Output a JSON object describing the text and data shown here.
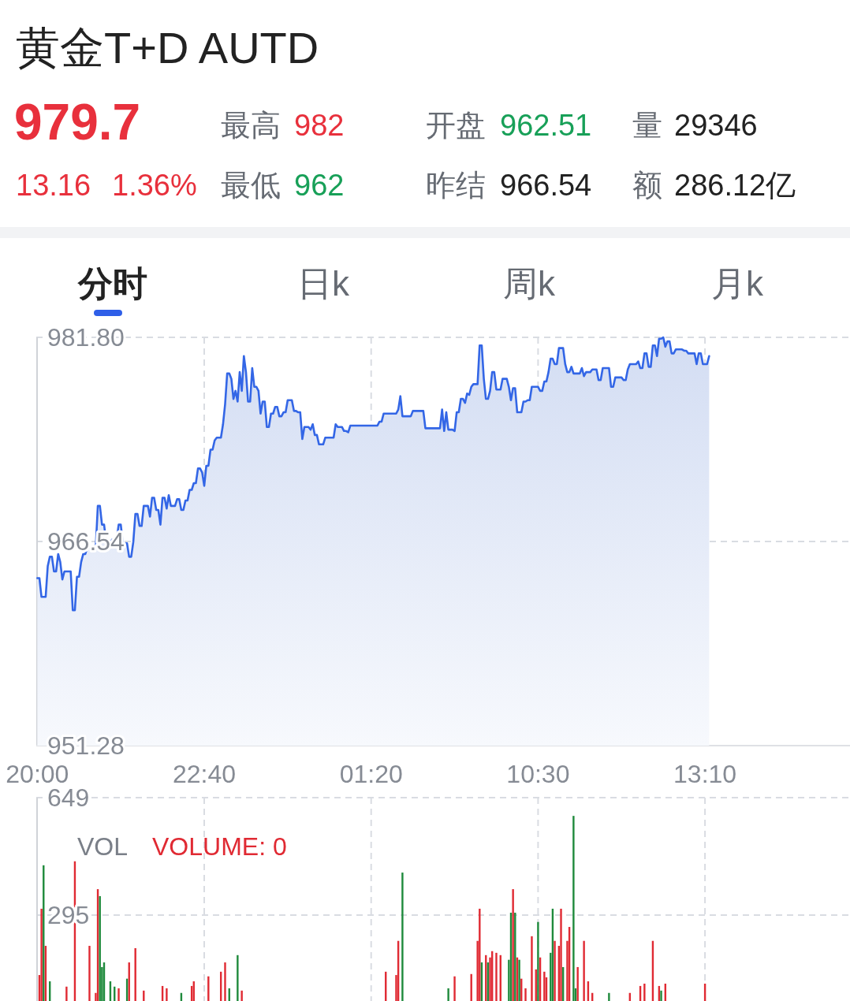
{
  "chart_data": [
    {
      "type": "other",
      "title": "黄金T+D AUTD",
      "annotations": [
        "979.7",
        "最高",
        "982",
        "开盘",
        "962.51",
        "量",
        "29346",
        "13.16",
        "1.36%",
        "最低",
        "962",
        "昨结",
        "966.54",
        "额",
        "286.12亿",
        "分时",
        "日k",
        "周k",
        "月k"
      ]
    },
    {
      "type": "area",
      "categories": [
        "20:00",
        null,
        null,
        null,
        null,
        null,
        null,
        null,
        null,
        null,
        null,
        null,
        null,
        null,
        null,
        null,
        null,
        null,
        null,
        null,
        null,
        null,
        null,
        null,
        null,
        null,
        null,
        null,
        null,
        null,
        null,
        null,
        null,
        null,
        null,
        null,
        null,
        null,
        null,
        null,
        null,
        null,
        null,
        null,
        null,
        null,
        null,
        null,
        null,
        null,
        null,
        null,
        null,
        null,
        null,
        null,
        null,
        null,
        null,
        null,
        null,
        null,
        null,
        null,
        null,
        null,
        null,
        null,
        null,
        null,
        null,
        null,
        null,
        null,
        null,
        null,
        null,
        null,
        null,
        null,
        "22:40",
        null,
        null,
        null,
        null,
        null,
        null,
        null,
        null,
        null,
        null,
        null,
        null,
        null,
        null,
        null,
        null,
        null,
        null,
        null,
        null,
        null,
        null,
        null,
        null,
        null,
        null,
        null,
        null,
        null,
        null,
        null,
        null,
        null,
        null,
        null,
        null,
        null,
        null,
        null,
        null,
        null,
        null,
        null,
        null,
        null,
        null,
        null,
        null,
        null,
        null,
        null,
        null,
        null,
        null,
        null,
        null,
        null,
        null,
        null,
        null,
        null,
        null,
        null,
        null,
        null,
        null,
        null,
        null,
        null,
        null,
        null,
        null,
        null,
        null,
        null,
        null,
        null,
        null,
        null,
        "01:20",
        null,
        null,
        null,
        null,
        null,
        null,
        null,
        null,
        null,
        null,
        null,
        null,
        null,
        null,
        null,
        null,
        null,
        null,
        null,
        null,
        null,
        null,
        null,
        null,
        null,
        null,
        null,
        null,
        null,
        null,
        null,
        null,
        null,
        null,
        null,
        null,
        null,
        null,
        null,
        null,
        null,
        null,
        null,
        null,
        null,
        null,
        null,
        null,
        null,
        null,
        null,
        null,
        null,
        null,
        null,
        null,
        null,
        null,
        null,
        null,
        null,
        null,
        null,
        null,
        null,
        null,
        null,
        null,
        null,
        null,
        null,
        null,
        null,
        null,
        null,
        null,
        null,
        null,
        null,
        "10:30",
        null,
        null,
        null,
        null,
        null,
        null,
        null,
        null,
        null,
        null,
        null,
        null,
        null,
        null,
        null,
        null,
        null,
        null,
        null,
        null,
        null,
        null,
        null,
        null,
        null,
        null,
        null,
        null,
        null,
        null,
        null,
        null,
        null,
        null,
        null,
        null,
        null,
        null,
        null,
        null,
        null,
        null,
        null,
        null,
        null,
        null,
        null,
        null,
        null,
        null,
        null,
        null,
        null,
        null,
        null,
        null,
        null,
        null,
        null,
        null,
        null,
        null,
        null,
        null,
        null,
        null,
        null,
        null,
        null,
        null,
        null,
        null,
        null,
        null,
        null,
        null,
        null,
        null,
        null,
        "13:10",
        null,
        null,
        null,
        null,
        null,
        null,
        null,
        null,
        null,
        null,
        null,
        null,
        null,
        null,
        null,
        null,
        null,
        null,
        null,
        null,
        null,
        null,
        null,
        null,
        null,
        null,
        null,
        null,
        null,
        null,
        null,
        null,
        null,
        null,
        null,
        null,
        null,
        null,
        null,
        null,
        null,
        null,
        null,
        null,
        null,
        null,
        null,
        null,
        null,
        null,
        null,
        null,
        null,
        null,
        null,
        null,
        null,
        null,
        null,
        null,
        null,
        null,
        null,
        null,
        null,
        null,
        null,
        null,
        null
      ],
      "series": [
        {
          "color": "#3366e6",
          "values": [
            963.8,
            963.8,
            962.4,
            962.4,
            962.4,
            964.7,
            965.4,
            965.4,
            964.3,
            964.3,
            965.6,
            965.0,
            963.7,
            964.3,
            964.3,
            964.3,
            964.3,
            961.4,
            961.4,
            963.9,
            963.9,
            965.0,
            965.6,
            965.6,
            966.1,
            966.1,
            966.1,
            966.1,
            966.1,
            969.2,
            969.2,
            967.8,
            967.8,
            966.5,
            966.5,
            966.5,
            966.7,
            966.7,
            966.7,
            967.8,
            967.8,
            966.4,
            966.4,
            966.4,
            965.4,
            965.4,
            966.5,
            968.6,
            968.6,
            967.7,
            967.7,
            969.2,
            969.2,
            969.2,
            968.4,
            969.8,
            969.8,
            968.9,
            968.9,
            967.8,
            969.8,
            969.8,
            969.0,
            970.0,
            969.2,
            969.2,
            969.2,
            969.7,
            969.7,
            968.9,
            968.9,
            969.6,
            969.6,
            970.4,
            970.4,
            970.9,
            970.9,
            972.0,
            972.0,
            971.7,
            970.7,
            972.2,
            972.2,
            973.4,
            973.4,
            974.1,
            974.3,
            974.3,
            974.3,
            975.3,
            976.8,
            979.1,
            979.1,
            978.7,
            977.2,
            977.8,
            977.0,
            979.2,
            977.8,
            980.4,
            979.2,
            977.0,
            977.0,
            979.5,
            978.1,
            978.1,
            977.8,
            976.1,
            977.0,
            977.0,
            975.1,
            975.1,
            976.1,
            976.1,
            976.6,
            976.6,
            975.9,
            975.9,
            976.2,
            976.2,
            977.1,
            977.1,
            977.1,
            976.3,
            976.3,
            976.2,
            976.2,
            974.2,
            975.1,
            975.1,
            975.1,
            974.9,
            975.3,
            974.5,
            974.5,
            973.8,
            973.8,
            973.8,
            974.3,
            974.3,
            974.3,
            974.3,
            974.3,
            975.3,
            975.1,
            975.1,
            975.1,
            974.8,
            974.8,
            974.7,
            975.2,
            975.2,
            975.2,
            975.2,
            975.2,
            975.2,
            975.2,
            975.2,
            975.2,
            975.2,
            975.2,
            975.2,
            975.2,
            975.2,
            975.5,
            975.5,
            976.1,
            976.1,
            976.1,
            976.1,
            976.1,
            976.1,
            976.1,
            976.4,
            977.4,
            975.9,
            975.9,
            975.9,
            975.9,
            975.9,
            976.3,
            976.3,
            976.3,
            976.3,
            976.3,
            976.3,
            975.0,
            975.0,
            975.0,
            975.0,
            975.0,
            975.0,
            975.0,
            975.0,
            976.4,
            974.8,
            976.2,
            974.9,
            974.9,
            974.9,
            974.8,
            976.2,
            976.2,
            977.2,
            977.2,
            976.9,
            977.6,
            977.5,
            978.1,
            978.3,
            978.3,
            978.3,
            981.2,
            981.2,
            978.7,
            977.2,
            977.2,
            977.8,
            979.2,
            979.2,
            977.9,
            977.9,
            977.9,
            978.7,
            978.7,
            978.7,
            978.1,
            977.1,
            978.0,
            978.0,
            976.2,
            976.2,
            976.2,
            977.0,
            977.0,
            977.1,
            977.1,
            978.1,
            978.1,
            978.1,
            978.1,
            977.8,
            977.8,
            978.5,
            978.5,
            979.2,
            980.2,
            980.2,
            979.8,
            979.8,
            981.0,
            981.0,
            981.0,
            979.8,
            979.2,
            979.2,
            979.6,
            979.1,
            979.1,
            979.1,
            979.1,
            979.5,
            978.9,
            979.2,
            979.2,
            979.2,
            979.4,
            979.4,
            979.4,
            978.6,
            978.6,
            979.5,
            979.5,
            979.5,
            979.5,
            978.1,
            978.1,
            978.8,
            978.8,
            978.8,
            978.8,
            978.6,
            978.6,
            979.4,
            979.8,
            979.8,
            979.8,
            979.8,
            980.0,
            979.5,
            979.5,
            980.6,
            980.6,
            979.6,
            979.6,
            981.2,
            981.2,
            980.4,
            981.7,
            981.7,
            981.8,
            981.1,
            981.5,
            981.5,
            980.6,
            980.6,
            980.9,
            980.9,
            980.9,
            980.9,
            980.8,
            980.8,
            980.6,
            980.6,
            980.6,
            980.6,
            979.8,
            980.6,
            980.6,
            979.8,
            979.8,
            979.8,
            980.4,
            null,
            null,
            null,
            null,
            null,
            null,
            null,
            null,
            null,
            null,
            null,
            null,
            null,
            null,
            null,
            null,
            null,
            null,
            null,
            null,
            null,
            null,
            null,
            null,
            null,
            null,
            null,
            null,
            null,
            null,
            null,
            null,
            null,
            null,
            null,
            null,
            null,
            null,
            null,
            null,
            null,
            null,
            null,
            null,
            null,
            null,
            null,
            null,
            null,
            null,
            null,
            null,
            null,
            null,
            null,
            null,
            null,
            null,
            null,
            null,
            null,
            null,
            null,
            null,
            null,
            null,
            null
          ]
        }
      ],
      "ylim": [
        951.28,
        981.8
      ],
      "yticks": [
        {
          "value": 951.28,
          "label": "951.28"
        },
        {
          "value": 966.54,
          "label": "966.54"
        },
        {
          "value": 981.8,
          "label": "981.80"
        }
      ],
      "grid": true
    },
    {
      "type": "bar",
      "annotations": [
        "VOL",
        "VOLUME: 0"
      ],
      "tick_labels": "y",
      "ylim": [
        0,
        649
      ],
      "yticks": [
        295,
        649
      ],
      "grid": true,
      "series": [
        {
          "values": [
            null,
            114,
            314,
            445,
            202,
            null,
            95,
            null,
            null,
            null,
            null,
            null,
            null,
            null,
            79,
            null,
            null,
            null,
            457,
            null,
            null,
            null,
            null,
            null,
            null,
            202,
            null,
            null,
            60,
            373,
            352,
            138,
            152,
            null,
            null,
            95,
            null,
            79,
            null,
            74,
            null,
            null,
            null,
            103,
            152,
            null,
            null,
            195,
            null,
            null,
            null,
            67,
            null,
            null,
            null,
            null,
            null,
            null,
            null,
            null,
            81,
            null,
            74,
            null,
            null,
            null,
            null,
            null,
            null,
            60,
            null,
            null,
            null,
            null,
            81,
            95,
            null,
            null,
            null,
            null,
            null,
            null,
            110,
            null,
            null,
            null,
            null,
            null,
            124,
            null,
            152,
            null,
            74,
            null,
            null,
            null,
            174,
            null,
            67,
            null,
            null,
            null,
            null,
            null,
            null,
            null,
            null,
            null,
            null,
            null,
            null,
            null,
            null,
            null,
            null,
            null,
            null,
            null,
            null,
            null,
            null,
            null,
            null,
            null,
            null,
            null,
            null,
            null,
            null,
            null,
            null,
            null,
            null,
            null,
            null,
            null,
            null,
            null,
            null,
            null,
            null,
            null,
            null,
            null,
            null,
            null,
            null,
            null,
            null,
            null,
            null,
            null,
            null,
            null,
            null,
            null,
            null,
            null,
            null,
            null,
            null,
            null,
            null,
            null,
            null,
            null,
            null,
            124,
            null,
            null,
            null,
            null,
            114,
            217,
            null,
            423,
            null,
            null,
            null,
            null,
            null,
            null,
            null,
            null,
            null,
            null,
            null,
            null,
            null,
            null,
            null,
            null,
            null,
            null,
            null,
            null,
            null,
            74,
            null,
            null,
            110,
            null,
            null,
            null,
            null,
            null,
            null,
            null,
            117,
            null,
            null,
            217,
            314,
            152,
            null,
            174,
            152,
            167,
            186,
            null,
            181,
            null,
            174,
            null,
            null,
            null,
            160,
            302,
            373,
            302,
            167,
            160,
            103,
            null,
            74,
            null,
            null,
            231,
            null,
            131,
            274,
            167,
            null,
            124,
            107,
            null,
            181,
            314,
            217,
            null,
            202,
            314,
            138,
            null,
            217,
            259,
            null,
            594,
            74,
            138,
            null,
            null,
            217,
            null,
            95,
            null,
            60,
            null,
            null,
            null,
            null,
            null,
            null,
            null,
            60,
            null,
            null,
            null,
            null,
            null,
            null,
            null,
            null,
            null,
            60,
            null,
            null,
            null,
            null,
            81,
            null,
            88,
            null,
            null,
            null,
            217,
            null,
            null,
            81,
            67,
            null,
            88,
            null,
            null,
            null,
            null,
            null,
            null,
            null,
            null,
            null,
            null,
            null,
            null,
            null,
            null,
            null,
            null,
            null,
            null,
            88,
            null,
            null,
            null,
            null,
            null,
            null,
            null,
            null,
            null,
            null,
            null,
            null,
            null,
            null,
            null,
            null,
            null,
            null,
            null,
            null,
            null,
            null,
            null,
            null,
            null,
            null,
            null,
            null,
            null,
            null,
            null,
            null,
            null,
            null,
            null,
            null,
            null,
            null,
            null,
            null,
            null,
            null,
            null,
            null,
            null,
            null,
            null,
            null,
            null,
            null,
            null,
            null,
            null,
            null,
            null,
            null,
            null,
            null,
            null,
            null,
            null,
            null,
            null,
            null,
            null,
            null,
            null,
            null,
            null
          ],
          "colors": [
            null,
            "#e02a33",
            "#e02a33",
            "#1f8a3c",
            "#e02a33",
            null,
            "#1f8a3c",
            null,
            null,
            null,
            null,
            null,
            null,
            null,
            "#e02a33",
            null,
            null,
            null,
            "#e02a33",
            null,
            null,
            null,
            null,
            null,
            null,
            "#e02a33",
            null,
            null,
            "#e02a33",
            "#e02a33",
            "#1f8a3c",
            "#1f8a3c",
            "#1f8a3c",
            null,
            null,
            "#1f8a3c",
            null,
            "#1f8a3c",
            null,
            "#e02a33",
            null,
            null,
            null,
            "#1f8a3c",
            "#e02a33",
            null,
            null,
            "#e02a33",
            null,
            null,
            null,
            "#e02a33",
            null,
            null,
            null,
            null,
            null,
            null,
            null,
            null,
            "#e02a33",
            null,
            "#e02a33",
            null,
            null,
            null,
            null,
            null,
            null,
            "#1f8a3c",
            null,
            null,
            null,
            null,
            "#e02a33",
            "#e02a33",
            null,
            null,
            null,
            null,
            null,
            null,
            "#e02a33",
            null,
            null,
            null,
            null,
            null,
            "#e02a33",
            null,
            "#e02a33",
            null,
            "#1f8a3c",
            null,
            null,
            null,
            "#1f8a3c",
            null,
            "#e02a33",
            null,
            null,
            null,
            null,
            null,
            null,
            null,
            null,
            null,
            null,
            null,
            null,
            null,
            null,
            null,
            null,
            null,
            null,
            null,
            null,
            null,
            null,
            null,
            null,
            null,
            null,
            null,
            null,
            null,
            null,
            null,
            null,
            null,
            null,
            null,
            null,
            null,
            null,
            null,
            null,
            null,
            null,
            null,
            null,
            null,
            null,
            null,
            null,
            null,
            null,
            null,
            null,
            null,
            null,
            null,
            null,
            null,
            null,
            null,
            null,
            null,
            null,
            null,
            null,
            null,
            null,
            null,
            null,
            "#e02a33",
            null,
            null,
            null,
            null,
            "#e02a33",
            "#e02a33",
            null,
            "#1f8a3c",
            null,
            null,
            null,
            null,
            null,
            null,
            null,
            null,
            null,
            null,
            null,
            null,
            null,
            null,
            null,
            null,
            null,
            null,
            null,
            null,
            null,
            "#1f8a3c",
            null,
            null,
            "#e02a33",
            null,
            null,
            null,
            null,
            null,
            null,
            null,
            "#e02a33",
            null,
            null,
            "#e02a33",
            "#e02a33",
            "#1f8a3c",
            null,
            "#e02a33",
            "#1f8a3c",
            "#e02a33",
            "#e02a33",
            null,
            "#e02a33",
            null,
            "#e02a33",
            null,
            null,
            null,
            "#1f8a3c",
            "#1f8a3c",
            "#e02a33",
            "#1f8a3c",
            "#e02a33",
            "#1f8a3c",
            "#e02a33",
            null,
            "#e02a33",
            null,
            null,
            "#e02a33",
            null,
            "#e02a33",
            "#1f8a3c",
            "#e02a33",
            null,
            "#e02a33",
            "#e02a33",
            null,
            "#1f8a3c",
            "#1f8a3c",
            "#e02a33",
            null,
            "#e02a33",
            "#e02a33",
            "#1f8a3c",
            null,
            "#e02a33",
            "#e02a33",
            null,
            "#1f8a3c",
            "#1f8a3c",
            "#e02a33",
            null,
            null,
            "#e02a33",
            null,
            "#e02a33",
            null,
            "#e02a33",
            null,
            null,
            null,
            null,
            null,
            null,
            null,
            "#1f8a3c",
            null,
            null,
            null,
            null,
            null,
            null,
            null,
            null,
            null,
            "#e02a33",
            null,
            null,
            null,
            null,
            "#e02a33",
            null,
            "#e02a33",
            null,
            null,
            null,
            "#e02a33",
            null,
            null,
            "#e02a33",
            "#1f8a3c",
            null,
            "#e02a33",
            null,
            null,
            null,
            null,
            null,
            null,
            null,
            null,
            null,
            null,
            null,
            null,
            null,
            null,
            null,
            null,
            null,
            null,
            "#e02a33",
            null,
            null,
            null,
            null,
            null,
            null,
            null,
            null,
            null,
            null,
            null,
            null,
            null,
            null,
            null,
            null,
            null,
            null,
            null,
            null,
            null,
            null,
            null,
            null,
            null,
            null,
            null,
            null,
            null,
            null,
            null,
            null,
            null,
            null,
            null,
            null,
            null,
            null,
            null,
            null,
            null,
            null,
            null,
            null,
            null,
            null,
            null,
            null,
            null,
            null,
            null,
            null,
            null,
            null,
            null,
            null,
            null,
            null,
            null,
            null,
            null,
            null,
            null,
            null,
            null,
            null,
            null,
            null,
            null
          ]
        }
      ]
    }
  ]
}
